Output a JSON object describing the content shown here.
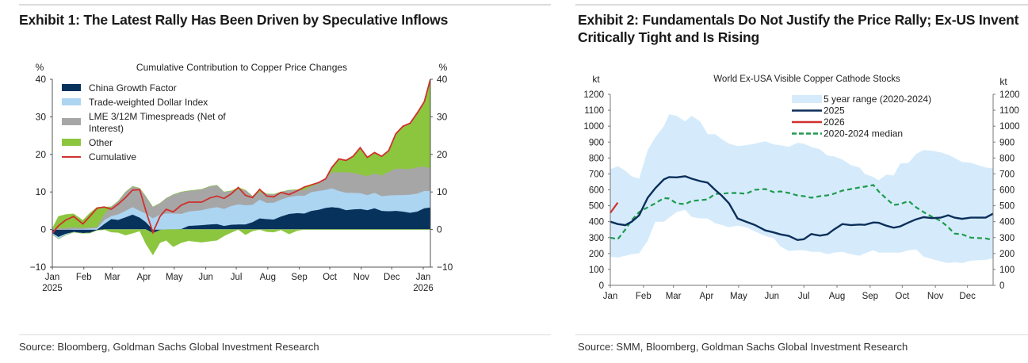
{
  "exhibit1": {
    "title": "Exhibit 1: The Latest Rally Has Been Driven by Speculative Inflows",
    "source": "Source: Bloomberg, Goldman Sachs Global Investment Research"
  },
  "exhibit2": {
    "title_line1": "Exhibit 2: Fundamentals Do Not Justify the Price Rally; Ex-US Invent",
    "title_line2": "Critically Tight and Is Rising",
    "source": "Source: SMM, Bloomberg, Goldman Sachs Global Investment Research"
  },
  "chart_data": [
    {
      "type": "area",
      "stacked": true,
      "title": "Cumulative Contribution to Copper Price Changes",
      "ylabel_left": "%",
      "ylabel_right": "%",
      "ylim": [
        -10,
        40
      ],
      "yticks": [
        "40",
        "30",
        "20",
        "10",
        "0",
        "−10"
      ],
      "yticks_values": [
        40,
        30,
        20,
        10,
        0,
        -10
      ],
      "xlim": [
        "2025-01-01",
        "2026-01-08"
      ],
      "xticks": [
        {
          "label": "Jan",
          "date": "2025-01-01",
          "sub": "2025"
        },
        {
          "label": "Feb",
          "date": "2025-02-01"
        },
        {
          "label": "Mar",
          "date": "2025-03-01"
        },
        {
          "label": "Apr",
          "date": "2025-04-01"
        },
        {
          "label": "May",
          "date": "2025-05-01"
        },
        {
          "label": "Jun",
          "date": "2025-06-01"
        },
        {
          "label": "Jul",
          "date": "2025-07-01"
        },
        {
          "label": "Aug",
          "date": "2025-08-01"
        },
        {
          "label": "Sep",
          "date": "2025-09-01"
        },
        {
          "label": "Oct",
          "date": "2025-10-01"
        },
        {
          "label": "Nov",
          "date": "2025-11-01"
        },
        {
          "label": "Dec",
          "date": "2025-12-01"
        },
        {
          "label": "Jan",
          "date": "2026-01-01",
          "sub": "2026"
        }
      ],
      "grid": false,
      "legend_placement": "top-left",
      "series": [
        {
          "name": "China Growth Factor",
          "color": "#07325c"
        },
        {
          "name": "Trade-weighted Dollar Index",
          "color": "#acd5f2"
        },
        {
          "name": "LME 3/12M Timespreads (Net of Interest)",
          "name_lines": [
            "LME 3/12M Timespreads (Net of",
            "Interest)"
          ],
          "color": "#a6a6a6"
        },
        {
          "name": "Other",
          "color": "#8cc63f",
          "note_residual": true
        },
        {
          "name": "Cumulative",
          "color": "#d0312d",
          "line": true
        }
      ],
      "columns": [
        "date",
        "China Growth Factor",
        "Trade-weighted Dollar Index",
        "LME 3/12M Timespreads (Net of Interest)",
        "Cumulative"
      ],
      "rows": [
        [
          "2025-01-01",
          -1,
          -0.3,
          0.3,
          -1
        ],
        [
          "2025-01-07",
          -2,
          -0.5,
          0.3,
          1
        ],
        [
          "2025-01-14",
          -1.2,
          -0.3,
          0.5,
          2.5
        ],
        [
          "2025-01-22",
          -0.7,
          0.2,
          0.4,
          3.5
        ],
        [
          "2025-01-31",
          -1,
          0.2,
          0.3,
          1.5
        ],
        [
          "2025-02-07",
          -0.9,
          0.3,
          0.3,
          3.5
        ],
        [
          "2025-02-14",
          -0.2,
          0.4,
          0.3,
          5.7
        ],
        [
          "2025-02-21",
          1.5,
          1,
          1.5,
          6
        ],
        [
          "2025-02-28",
          2.8,
          0.8,
          2.5,
          5.4
        ],
        [
          "2025-03-07",
          2.6,
          1.5,
          3.5,
          6.8
        ],
        [
          "2025-03-14",
          3.3,
          1.7,
          5,
          8.5
        ],
        [
          "2025-03-21",
          4,
          2,
          5.5,
          10.5
        ],
        [
          "2025-03-28",
          3.2,
          1.8,
          6,
          10.6
        ],
        [
          "2025-04-03",
          2,
          2.3,
          4.5,
          5
        ],
        [
          "2025-04-10",
          -1,
          3,
          3,
          -0.8
        ],
        [
          "2025-04-17",
          -0.2,
          4,
          3,
          3.5
        ],
        [
          "2025-04-23",
          0,
          4.3,
          4,
          5.4
        ],
        [
          "2025-04-30",
          0,
          4.3,
          5,
          4.7
        ],
        [
          "2025-05-08",
          0.2,
          4,
          5.8,
          6.5
        ],
        [
          "2025-05-15",
          1,
          3.8,
          5.5,
          7.3
        ],
        [
          "2025-05-28",
          1.2,
          4,
          5.5,
          7.3
        ],
        [
          "2025-06-05",
          1.4,
          4.3,
          5.8,
          8.4
        ],
        [
          "2025-06-12",
          1.5,
          4.5,
          5.8,
          8.9
        ],
        [
          "2025-06-19",
          1,
          4.5,
          4.5,
          8.3
        ],
        [
          "2025-06-26",
          1.3,
          5,
          4,
          9.5
        ],
        [
          "2025-07-03",
          1.4,
          5.3,
          4,
          11.2
        ],
        [
          "2025-07-10",
          1.4,
          5.1,
          4,
          9.1
        ],
        [
          "2025-07-17",
          2,
          4.6,
          2.3,
          8.5
        ],
        [
          "2025-07-24",
          3,
          5,
          2,
          10.7
        ],
        [
          "2025-07-31",
          2.8,
          4.3,
          2.4,
          8.9
        ],
        [
          "2025-08-07",
          2.7,
          4.5,
          2.2,
          8.7
        ],
        [
          "2025-08-14",
          3.5,
          4.5,
          2,
          9.9
        ],
        [
          "2025-08-22",
          4.2,
          4.5,
          1.8,
          9.3
        ],
        [
          "2025-08-30",
          4.4,
          4.6,
          1.6,
          10.3
        ],
        [
          "2025-09-06",
          4.3,
          4.7,
          1.5,
          11.3
        ],
        [
          "2025-09-13",
          5,
          5,
          1.5,
          11.9
        ],
        [
          "2025-09-20",
          5.3,
          5,
          2,
          12.5
        ],
        [
          "2025-09-27",
          5.8,
          4.8,
          2.9,
          13.5
        ],
        [
          "2025-10-03",
          6,
          5,
          4.3,
          16.5
        ],
        [
          "2025-10-10",
          5.8,
          4.5,
          5,
          18.8
        ],
        [
          "2025-10-17",
          5.2,
          4.6,
          5.5,
          18.4
        ],
        [
          "2025-10-24",
          5.4,
          4.4,
          5.3,
          19.5
        ],
        [
          "2025-10-31",
          5.5,
          4.2,
          5,
          21.8
        ],
        [
          "2025-11-07",
          5.2,
          4,
          5,
          19.2
        ],
        [
          "2025-11-14",
          5.7,
          4.1,
          5.2,
          20.5
        ],
        [
          "2025-11-21",
          5,
          3.9,
          5.5,
          19.5
        ],
        [
          "2025-11-28",
          4.9,
          4.2,
          6.3,
          21
        ],
        [
          "2025-12-05",
          5,
          4.2,
          7,
          25.5
        ],
        [
          "2025-12-12",
          4.8,
          4.4,
          7,
          27.5
        ],
        [
          "2025-12-19",
          4.5,
          4.8,
          6.8,
          28.3
        ],
        [
          "2025-12-26",
          4.8,
          4.8,
          7,
          31
        ],
        [
          "2026-01-02",
          5.7,
          4.6,
          6.5,
          34
        ],
        [
          "2026-01-08",
          5.9,
          4.4,
          6,
          40
        ]
      ]
    },
    {
      "type": "line",
      "title": "World Ex-USA Visible Copper Cathode Stocks",
      "ylabel_left": "kt",
      "ylabel_right": "kt",
      "ylim": [
        0,
        1200
      ],
      "yticks": [
        "1200",
        "1100",
        "1000",
        "900",
        "800",
        "700",
        "600",
        "500",
        "400",
        "300",
        "200",
        "100",
        "0"
      ],
      "yticks_values": [
        1200,
        1100,
        1000,
        900,
        800,
        700,
        600,
        500,
        400,
        300,
        200,
        100,
        0
      ],
      "xlim": [
        "01-01",
        "12-25"
      ],
      "xticks": [
        {
          "label": "Jan",
          "date": "01-01"
        },
        {
          "label": "Feb",
          "date": "02-01"
        },
        {
          "label": "Mar",
          "date": "03-01"
        },
        {
          "label": "Apr",
          "date": "04-01"
        },
        {
          "label": "May",
          "date": "05-01"
        },
        {
          "label": "Jun",
          "date": "06-01"
        },
        {
          "label": "Jul",
          "date": "07-01"
        },
        {
          "label": "Aug",
          "date": "08-01"
        },
        {
          "label": "Sep",
          "date": "09-01"
        },
        {
          "label": "Oct",
          "date": "10-01"
        },
        {
          "label": "Nov",
          "date": "11-01"
        },
        {
          "label": "Dec",
          "date": "12-01"
        }
      ],
      "grid": false,
      "legend_placement": "top-right",
      "legend": [
        {
          "name": "5 year range (2020-2024)",
          "color": "#d5ebfb",
          "kind": "band"
        },
        {
          "name": "2025",
          "color": "#0b2f5a",
          "kind": "line"
        },
        {
          "name": "2026",
          "color": "#d0312d",
          "kind": "line"
        },
        {
          "name": "2020-2024 median",
          "color": "#1f9a4e",
          "kind": "dashed"
        }
      ],
      "x": [
        "01-01",
        "01-08",
        "01-15",
        "01-21",
        "01-28",
        "02-05",
        "02-12",
        "02-20",
        "02-25",
        "03-04",
        "03-12",
        "03-18",
        "03-26",
        "04-02",
        "04-09",
        "04-15",
        "04-22",
        "04-30",
        "05-08",
        "05-16",
        "05-26",
        "06-03",
        "06-09",
        "06-17",
        "06-25",
        "07-01",
        "07-08",
        "07-16",
        "07-23",
        "07-29",
        "08-06",
        "08-14",
        "08-22",
        "08-27",
        "09-04",
        "09-09",
        "09-16",
        "09-23",
        "09-29",
        "10-07",
        "10-14",
        "10-21",
        "10-29",
        "11-06",
        "11-13",
        "11-19",
        "11-26",
        "12-04",
        "12-18",
        "12-25"
      ],
      "range_high": [
        730,
        748,
        720,
        685,
        670,
        850,
        930,
        1000,
        1075,
        1065,
        1030,
        1065,
        1030,
        950,
        950,
        920,
        890,
        875,
        880,
        890,
        905,
        885,
        880,
        870,
        895,
        890,
        870,
        855,
        815,
        810,
        790,
        755,
        740,
        700,
        680,
        660,
        695,
        690,
        765,
        770,
        825,
        850,
        845,
        835,
        820,
        800,
        775,
        770,
        740,
        735
      ],
      "range_low": [
        180,
        175,
        185,
        195,
        200,
        280,
        400,
        400,
        425,
        460,
        475,
        430,
        420,
        420,
        390,
        380,
        365,
        375,
        365,
        340,
        310,
        295,
        245,
        215,
        220,
        220,
        210,
        210,
        195,
        205,
        210,
        195,
        185,
        200,
        220,
        205,
        205,
        205,
        205,
        220,
        225,
        180,
        165,
        150,
        140,
        145,
        140,
        155,
        160,
        170
      ],
      "median": [
        300,
        290,
        350,
        410,
        460,
        490,
        515,
        548,
        545,
        515,
        510,
        530,
        535,
        540,
        575,
        575,
        580,
        580,
        575,
        600,
        605,
        585,
        590,
        580,
        565,
        560,
        550,
        560,
        565,
        575,
        595,
        605,
        615,
        620,
        630,
        590,
        545,
        505,
        510,
        530,
        490,
        460,
        430,
        405,
        365,
        325,
        320,
        300,
        295,
        285
      ],
      "y2025": [
        400,
        385,
        378,
        400,
        440,
        550,
        610,
        665,
        680,
        678,
        685,
        670,
        655,
        645,
        600,
        565,
        515,
        420,
        400,
        380,
        345,
        332,
        320,
        310,
        285,
        290,
        322,
        312,
        320,
        350,
        385,
        378,
        382,
        380,
        395,
        393,
        375,
        362,
        370,
        395,
        415,
        428,
        422,
        425,
        440,
        425,
        418,
        425,
        425,
        450
      ],
      "y2026": {
        "x": [
          "01-01",
          "01-08"
        ],
        "values": [
          455,
          520
        ]
      }
    }
  ]
}
